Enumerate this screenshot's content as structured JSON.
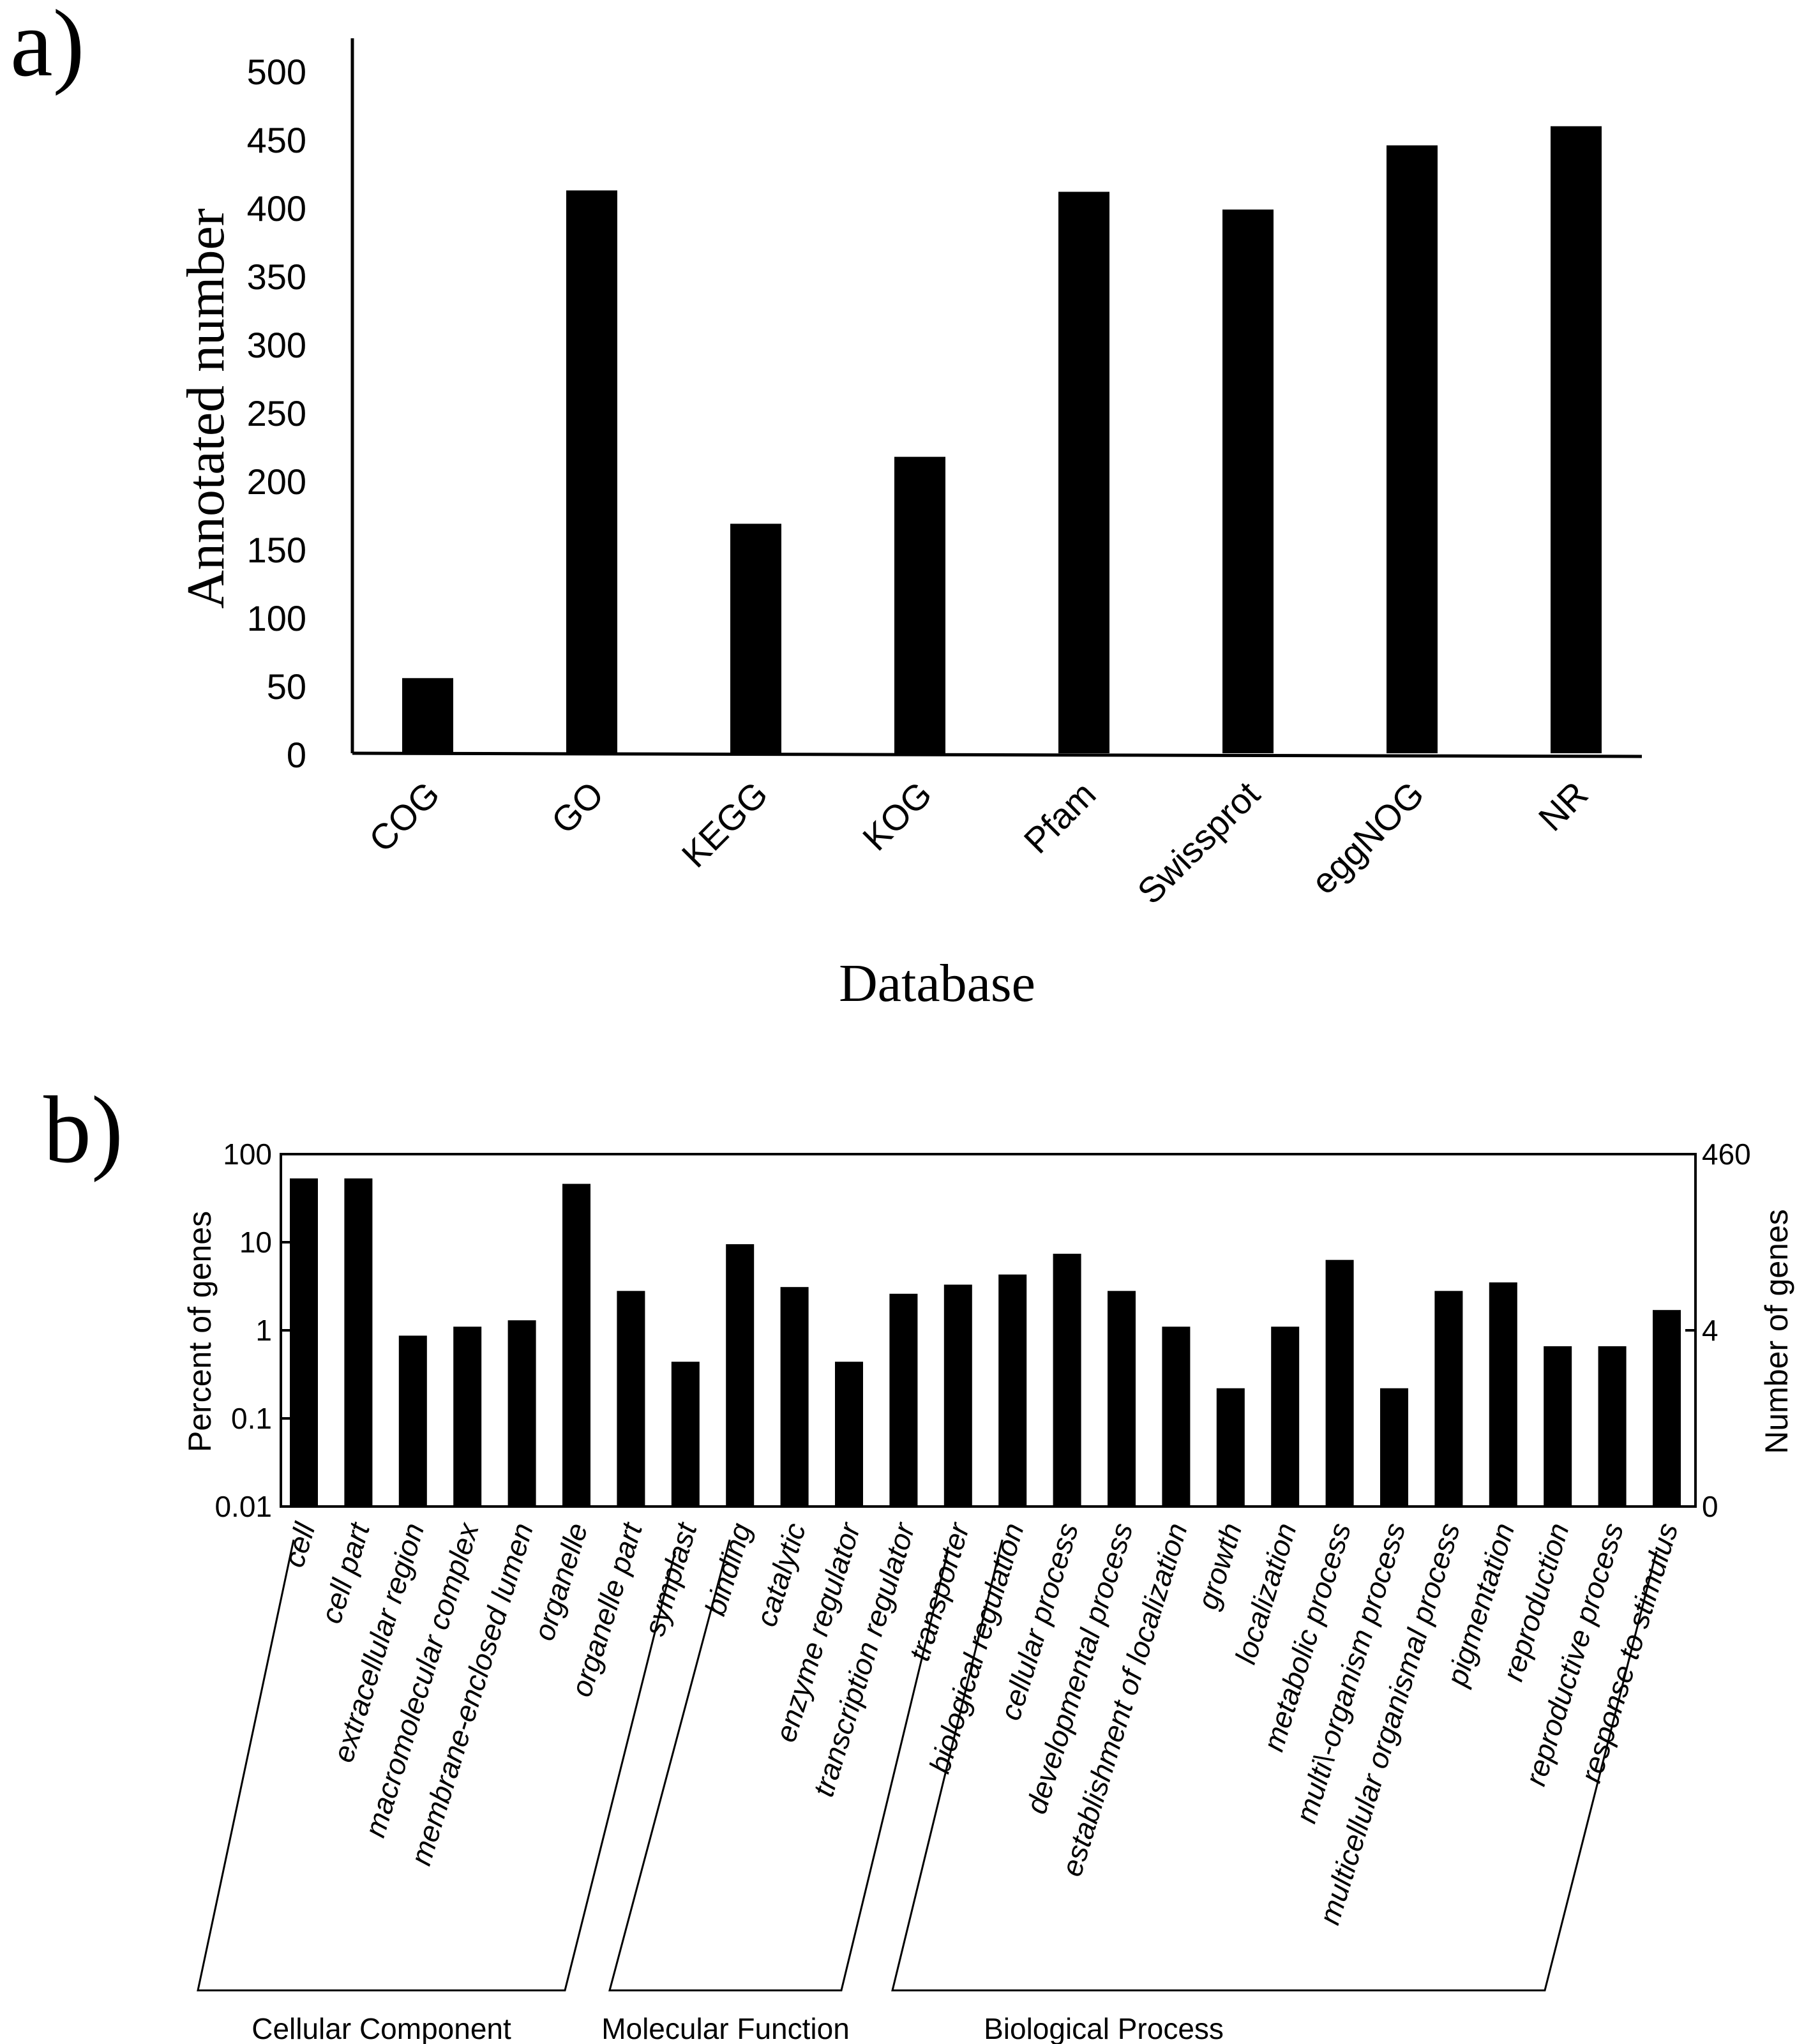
{
  "chart_data": [
    {
      "panel_label": "a)",
      "type": "bar",
      "categories": [
        "COG",
        "GO",
        "KEGG",
        "KOG",
        "Pfam",
        "Swissprot",
        "eggNOG",
        "NR"
      ],
      "values": [
        55,
        412,
        168,
        217,
        411,
        398,
        445,
        459
      ],
      "xlabel": "Database",
      "ylabel": "Annotated number",
      "ylim": [
        0,
        500
      ],
      "yticks": [
        "0",
        "50",
        "100",
        "150",
        "200",
        "250",
        "300",
        "350",
        "400",
        "450",
        "500"
      ],
      "grid": false,
      "bar_color": "#000000"
    },
    {
      "panel_label": "b)",
      "type": "bar",
      "y_scale": "log",
      "categories": [
        "cell",
        "cell part",
        "extracellular region",
        "macromolecular complex",
        "membrane-enclosed lumen",
        "organelle",
        "organelle part",
        "symplast",
        "binding",
        "catalytic",
        "enzyme regulator",
        "transcription regulator",
        "transporter",
        "biological regulation",
        "cellular process",
        "developmental process",
        "establishment of localization",
        "growth",
        "localization",
        "metabolic process",
        "multi\\-organism process",
        "multicellular organismal process",
        "pigmentation",
        "reproduction",
        "reproductive process",
        "response to stimulus"
      ],
      "values": [
        53,
        53,
        0.87,
        1.1,
        1.3,
        46,
        2.8,
        0.44,
        9.5,
        3.1,
        0.44,
        2.6,
        3.3,
        4.3,
        7.4,
        2.8,
        1.1,
        0.22,
        1.1,
        6.3,
        0.22,
        2.8,
        3.5,
        0.66,
        0.66,
        1.7
      ],
      "ylabel": "Percent of genes",
      "ylabel_right": "Number of genes",
      "ylim": [
        0.01,
        100
      ],
      "yticks": [
        "100",
        "10",
        "1",
        "0.1",
        "0.01"
      ],
      "yticks_right": [
        "460",
        "4",
        "0"
      ],
      "groups": [
        {
          "label": "Cellular Component",
          "from": 0,
          "to": 7
        },
        {
          "label": "Molecular Function",
          "from": 8,
          "to": 12
        },
        {
          "label": "Biological Process",
          "from": 13,
          "to": 25
        }
      ],
      "grid": false,
      "bar_color": "#000000"
    }
  ]
}
